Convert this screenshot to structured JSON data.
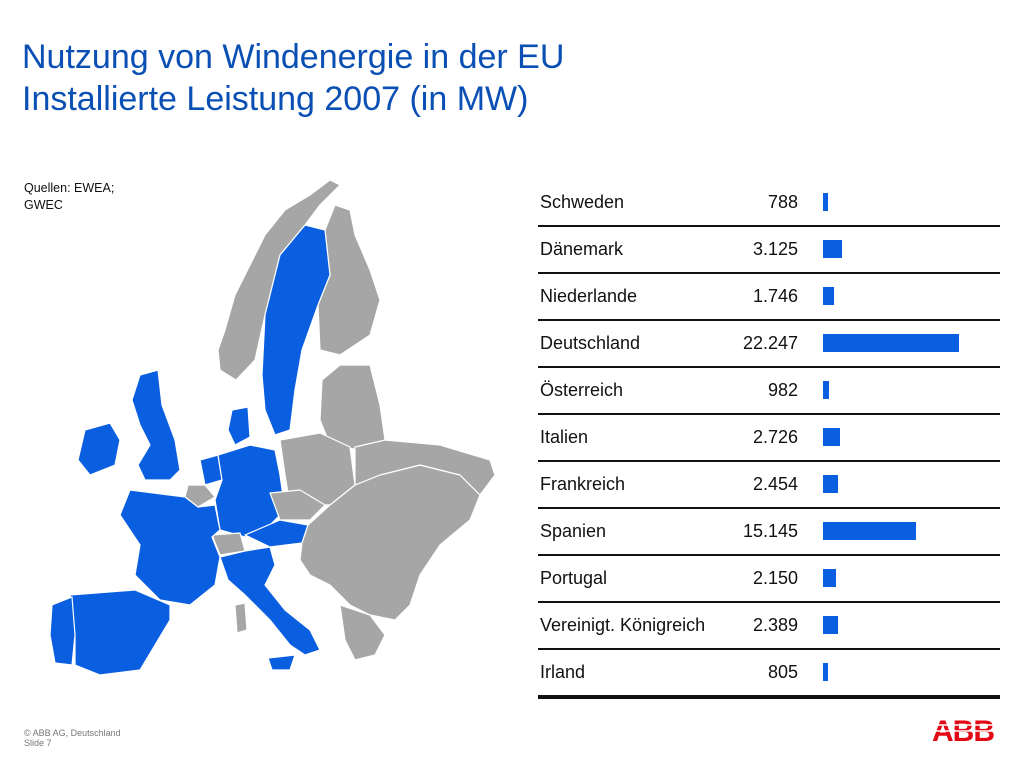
{
  "header": {
    "title_line1": "Nutzung von Windenergie in der EU",
    "title_line2": "Installierte Leistung 2007 (in MW)"
  },
  "source_note": "Quellen: EWEA; GWEC",
  "footer": {
    "copyright": "© ABB AG, Deutschland",
    "slide": "Slide 7"
  },
  "logo_text": "ABB",
  "colors": {
    "title": "#0a4fb4",
    "bar": "#0a5fe0",
    "highlight_country": "#0a5fe0",
    "other_country": "#a6a6a6",
    "logo": "#e30613"
  },
  "chart_data": {
    "type": "bar",
    "orientation": "horizontal",
    "title": "Installierte Leistung 2007 (in MW)",
    "categories": [
      "Schweden",
      "Dänemark",
      "Niederlande",
      "Deutschland",
      "Österreich",
      "Italien",
      "Frankreich",
      "Spanien",
      "Portugal",
      "Vereinigt. Königreich",
      "Irland"
    ],
    "labels": [
      "788",
      "3.125",
      "1.746",
      "22.247",
      "982",
      "2.726",
      "2.454",
      "15.145",
      "2.150",
      "2.389",
      "805"
    ],
    "values": [
      788,
      3125,
      1746,
      22247,
      982,
      2726,
      2454,
      15145,
      2150,
      2389,
      805
    ],
    "unit": "MW"
  }
}
